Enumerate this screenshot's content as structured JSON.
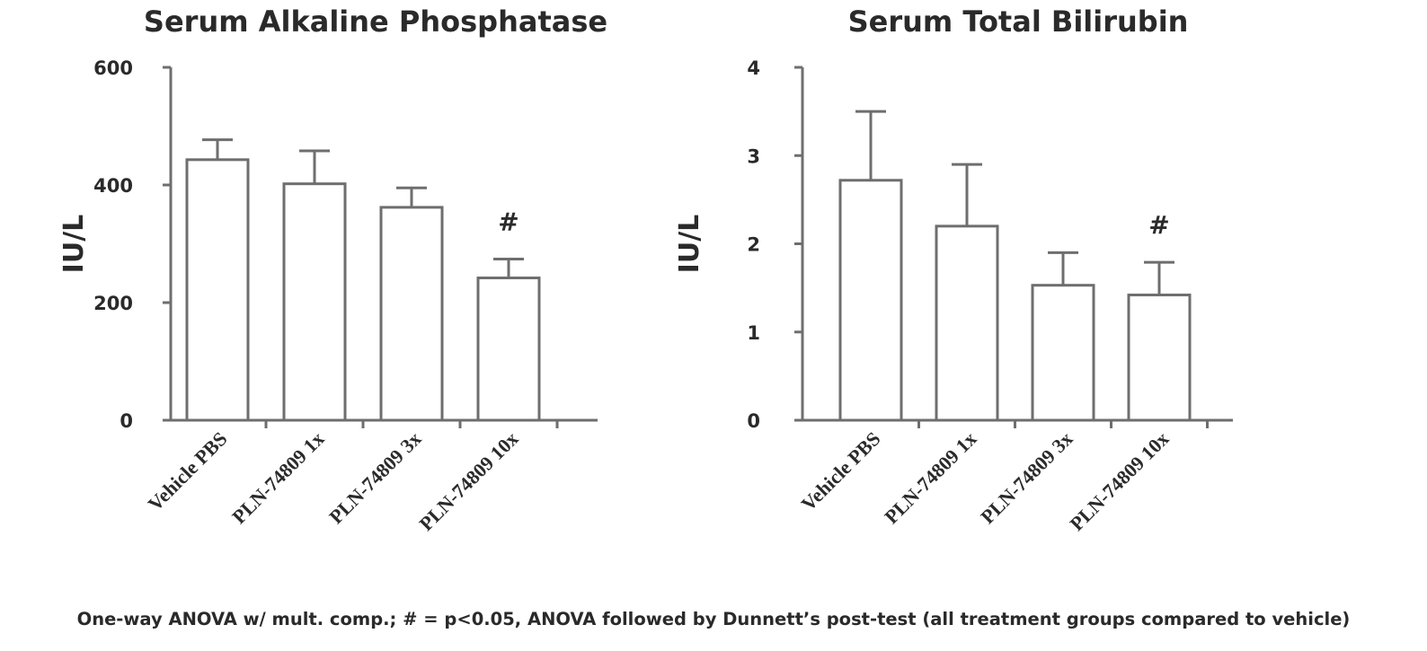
{
  "chart_data": [
    {
      "type": "bar",
      "title": "Serum Alkaline Phosphatase",
      "ylabel": "IU/L",
      "xlabel": "",
      "ylim": [
        0,
        600
      ],
      "yticks": [
        0,
        200,
        400,
        600
      ],
      "categories": [
        "Vehicle PBS",
        "PLN-74809 1x",
        "PLN-74809 3x",
        "PLN-74809 10x"
      ],
      "values": [
        443,
        402,
        362,
        242
      ],
      "error_upper": [
        477,
        458,
        395,
        274
      ],
      "annotations": [
        {
          "category": "PLN-74809 10x",
          "text": "#"
        }
      ],
      "grid": false,
      "legend": "none"
    },
    {
      "type": "bar",
      "title": "Serum Total Bilirubin",
      "ylabel": "IU/L",
      "xlabel": "",
      "ylim": [
        0,
        4
      ],
      "yticks": [
        0,
        1,
        2,
        3,
        4
      ],
      "categories": [
        "Vehicle PBS",
        "PLN-74809 1x",
        "PLN-74809 3x",
        "PLN-74809 10x"
      ],
      "values": [
        2.72,
        2.2,
        1.53,
        1.42
      ],
      "error_upper": [
        3.5,
        2.9,
        1.9,
        1.79
      ],
      "annotations": [
        {
          "category": "PLN-74809 10x",
          "text": "#"
        }
      ],
      "grid": false,
      "legend": "none"
    }
  ],
  "footnote": "One-way ANOVA w/ mult. comp.; # = p<0.05, ANOVA followed by Dunnett’s post-test (all treatment groups compared to vehicle)"
}
